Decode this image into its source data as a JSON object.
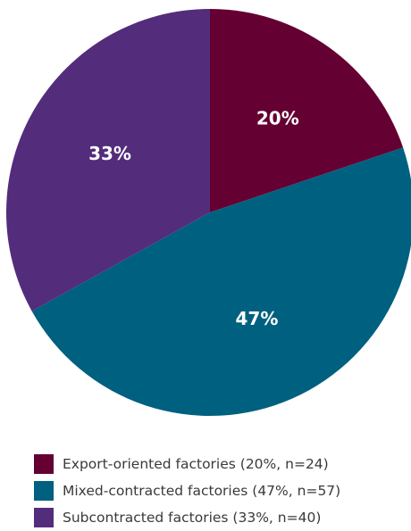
{
  "chart_data": {
    "type": "pie",
    "title": "",
    "start_angle_deg": 0,
    "direction": "clockwise",
    "slices": [
      {
        "label": "Export-oriented factories (20%, n=24)",
        "value": 24,
        "percent_label": "20%",
        "color": "#640032"
      },
      {
        "label": "Mixed-contracted factories (47%, n=57)",
        "value": 57,
        "percent_label": "47%",
        "color": "#00607f"
      },
      {
        "label": "Subcontracted factories (33%, n=40)",
        "value": 40,
        "percent_label": "33%",
        "color": "#542c7c"
      }
    ],
    "legend_position": "bottom"
  }
}
